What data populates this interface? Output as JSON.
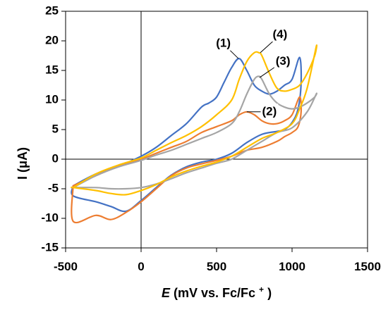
{
  "chart_data": {
    "type": "line",
    "title": "",
    "xlabel": {
      "symbol": "E",
      "text": " (mV vs. Fc/Fc",
      "superscript": "+",
      "close": ")"
    },
    "ylabel": "I (μA)",
    "xlim": [
      -500,
      1500
    ],
    "ylim": [
      -15,
      25
    ],
    "x_ticks": [
      -500,
      0,
      500,
      1000,
      1500
    ],
    "y_ticks": [
      -15,
      -10,
      -5,
      0,
      5,
      10,
      15,
      20,
      25
    ],
    "x_tick_labels": [
      "-500",
      "0",
      "500",
      "1000",
      "1500"
    ],
    "y_tick_labels": [
      "-15",
      "-10",
      "-5",
      "0",
      "5",
      "10",
      "15",
      "20",
      "25"
    ],
    "grid": false,
    "legend": "none",
    "series": [
      {
        "name": "(1)",
        "color": "#4472C4",
        "x": [
          -450,
          -300,
          -150,
          0,
          100,
          200,
          300,
          400,
          450,
          500,
          550,
          600,
          650,
          700,
          750,
          800,
          850,
          900,
          950,
          1000,
          1050,
          1060,
          1040,
          1000,
          950,
          900,
          800,
          700,
          600,
          500,
          400,
          300,
          200,
          100,
          0,
          -100,
          -200,
          -300,
          -450,
          -450
        ],
        "y": [
          -4.5,
          -2.5,
          -1.2,
          0.5,
          2.0,
          4.0,
          6.0,
          8.8,
          9.5,
          10.5,
          13.0,
          15.5,
          17.0,
          15.0,
          12.5,
          11.5,
          11.0,
          11.5,
          12.5,
          13.5,
          17.2,
          13.0,
          8.5,
          6.2,
          5.0,
          4.7,
          4.2,
          2.8,
          1.0,
          0.0,
          -0.5,
          -1.3,
          -2.7,
          -4.8,
          -7.0,
          -8.8,
          -8.0,
          -7.2,
          -6.2,
          -4.5
        ]
      },
      {
        "name": "(2)",
        "color": "#ED7D31",
        "x": [
          -450,
          -300,
          -150,
          0,
          100,
          200,
          300,
          400,
          500,
          600,
          650,
          700,
          750,
          800,
          850,
          900,
          950,
          1000,
          1050,
          1060,
          1040,
          1000,
          950,
          900,
          800,
          700,
          600,
          500,
          400,
          300,
          200,
          100,
          0,
          -100,
          -200,
          -300,
          -450,
          -450
        ],
        "y": [
          -4.5,
          -2.8,
          -1.2,
          0.0,
          1.0,
          2.0,
          3.0,
          4.5,
          5.5,
          6.5,
          7.5,
          8.0,
          7.5,
          6.5,
          6.0,
          6.0,
          6.5,
          7.5,
          10.5,
          8.0,
          5.5,
          4.5,
          3.8,
          3.0,
          2.0,
          1.5,
          0.5,
          -0.2,
          -0.8,
          -1.5,
          -2.8,
          -5.0,
          -7.2,
          -9.0,
          -10.2,
          -9.5,
          -10.5,
          -4.5
        ]
      },
      {
        "name": "(3)",
        "color": "#A5A5A5",
        "x": [
          -450,
          -300,
          -150,
          0,
          100,
          200,
          300,
          400,
          500,
          600,
          650,
          700,
          750,
          780,
          800,
          850,
          900,
          950,
          1000,
          1050,
          1100,
          1150,
          1160,
          1100,
          1000,
          900,
          800,
          700,
          600,
          500,
          400,
          300,
          200,
          100,
          0,
          -100,
          -200,
          -300,
          -450,
          -450
        ],
        "y": [
          -4.8,
          -2.8,
          -1.3,
          -0.2,
          0.7,
          1.5,
          2.5,
          3.5,
          4.5,
          6.0,
          8.0,
          11.0,
          13.5,
          14.0,
          13.5,
          11.0,
          9.5,
          8.8,
          8.5,
          8.8,
          9.5,
          10.5,
          11.0,
          8.0,
          5.3,
          4.5,
          3.0,
          1.5,
          0.0,
          -0.7,
          -1.5,
          -2.3,
          -3.3,
          -4.2,
          -4.8,
          -5.0,
          -5.0,
          -4.8,
          -4.8,
          -4.8
        ]
      },
      {
        "name": "(4)",
        "color": "#FFC000",
        "x": [
          -450,
          -300,
          -150,
          0,
          100,
          200,
          300,
          400,
          500,
          600,
          650,
          700,
          750,
          780,
          800,
          850,
          900,
          950,
          1000,
          1050,
          1100,
          1150,
          1160,
          1100,
          1050,
          1000,
          900,
          800,
          700,
          600,
          500,
          400,
          300,
          200,
          100,
          0,
          -100,
          -200,
          -300,
          -450,
          -450
        ],
        "y": [
          -4.8,
          -2.5,
          -1.0,
          0.2,
          1.5,
          2.8,
          4.0,
          5.5,
          7.5,
          10.0,
          13.5,
          16.5,
          18.0,
          18.0,
          17.5,
          14.5,
          12.0,
          11.5,
          11.8,
          12.5,
          14.5,
          17.5,
          19.0,
          12.0,
          8.5,
          6.0,
          4.5,
          3.5,
          2.0,
          0.5,
          -0.5,
          -1.2,
          -2.0,
          -3.0,
          -4.3,
          -5.3,
          -6.0,
          -5.8,
          -5.3,
          -4.8,
          -4.8
        ]
      }
    ],
    "annotations": [
      {
        "text": "(1)",
        "x": 545,
        "y": 19.5,
        "leader_x": 645,
        "leader_y": 17.0
      },
      {
        "text": "(2)",
        "x": 850,
        "y": 8.0,
        "leader_x": 700,
        "leader_y": 8.0
      },
      {
        "text": "(3)",
        "x": 940,
        "y": 16.5,
        "leader_x": 785,
        "leader_y": 13.8
      },
      {
        "text": "(4)",
        "x": 920,
        "y": 21.0,
        "leader_x": 790,
        "leader_y": 18.0
      }
    ]
  }
}
